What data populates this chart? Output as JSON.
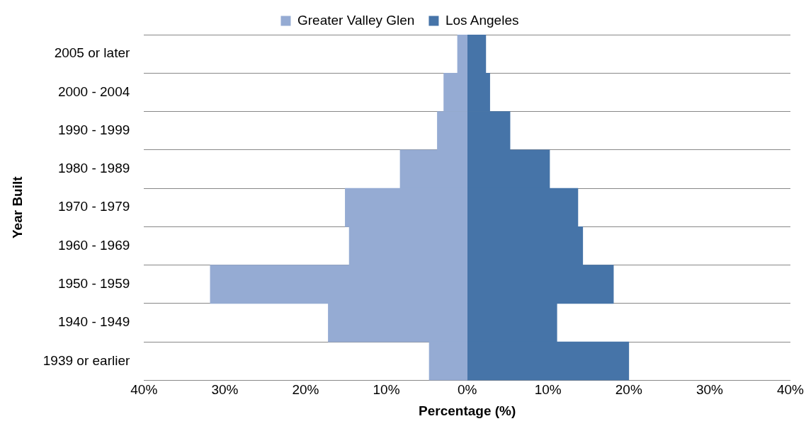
{
  "chart_data": {
    "type": "bar",
    "orientation": "horizontal",
    "xlabel": "Percentage (%)",
    "ylabel": "Year Built",
    "categories": [
      "2005 or later",
      "2000 - 2004",
      "1990 - 1999",
      "1980 - 1989",
      "1970 - 1979",
      "1960 - 1969",
      "1950 - 1959",
      "1940 - 1949",
      "1939 or earlier"
    ],
    "series": [
      {
        "name": "Greater Valley Glen",
        "color": "#95abd3",
        "values": [
          -1.2,
          -2.9,
          -3.7,
          -8.3,
          -15.1,
          -14.6,
          -31.8,
          -17.2,
          -4.7
        ]
      },
      {
        "name": "Los Angeles",
        "color": "#4674a8",
        "values": [
          2.3,
          2.8,
          5.3,
          10.2,
          13.7,
          14.3,
          18.1,
          11.1,
          20.0
        ]
      }
    ],
    "xlim": [
      -40,
      40
    ],
    "xticks": [
      {
        "value": -40,
        "label": "40%"
      },
      {
        "value": -30,
        "label": "30%"
      },
      {
        "value": -20,
        "label": "20%"
      },
      {
        "value": -10,
        "label": "10%"
      },
      {
        "value": 0,
        "label": "0%"
      },
      {
        "value": 10,
        "label": "10%"
      },
      {
        "value": 20,
        "label": "20%"
      },
      {
        "value": 30,
        "label": "30%"
      },
      {
        "value": 40,
        "label": "40%"
      }
    ],
    "stacked": true,
    "grid": "y",
    "legend": "top"
  }
}
